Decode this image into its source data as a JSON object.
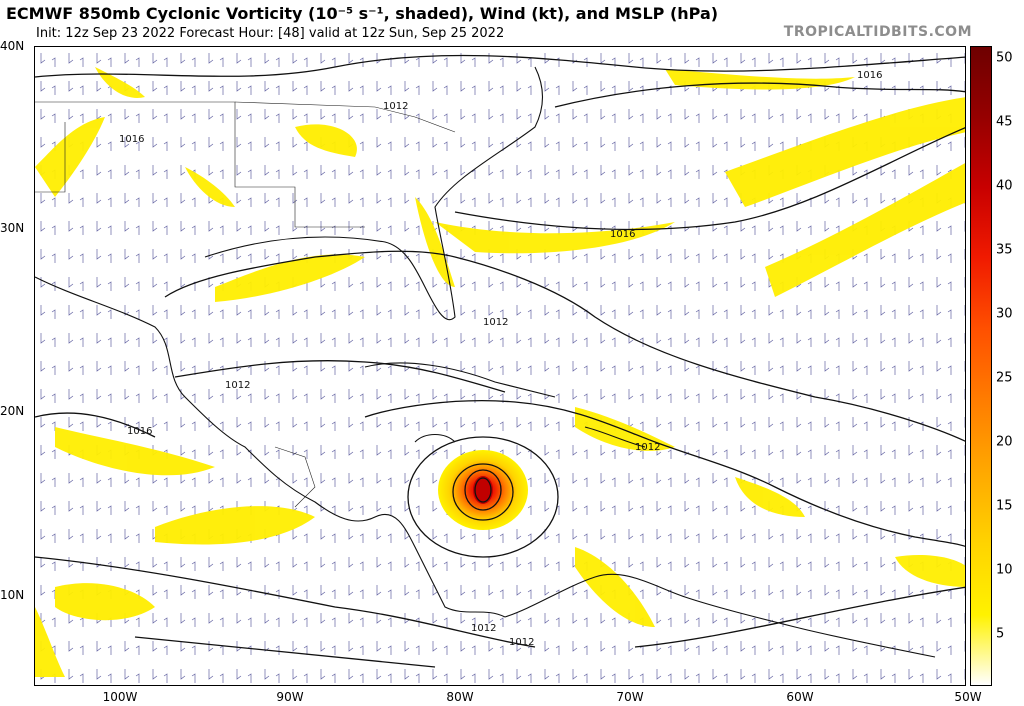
{
  "header": {
    "title": "ECMWF 850mb Cyclonic Vorticity (10⁻⁵ s⁻¹, shaded), Wind (kt), and MSLP (hPa)",
    "subtitle": "Init: 12z Sep 23 2022   Forecast Hour: [48]   valid at 12z Sun, Sep 25 2022",
    "brand": "TROPICALTIDBITS.COM"
  },
  "axes": {
    "lat_labels": [
      "40N",
      "30N",
      "20N",
      "10N"
    ],
    "lon_labels": [
      "100W",
      "90W",
      "80W",
      "70W",
      "60W",
      "50W"
    ]
  },
  "colorbar": {
    "ticks": [
      "50",
      "45",
      "40",
      "35",
      "30",
      "25",
      "20",
      "15",
      "10",
      "5"
    ],
    "colors": [
      "#ffffff",
      "#fff200",
      "#ffd400",
      "#ffaa00",
      "#ff7f00",
      "#ff4f00",
      "#f01a00",
      "#c80000",
      "#960000",
      "#6e0000"
    ]
  },
  "isobars": {
    "labels": [
      "1016",
      "1016",
      "1016",
      "1012",
      "1012",
      "1016",
      "1012",
      "1012",
      "1012",
      "1012"
    ]
  },
  "map": {
    "feature": "tropical cyclone vorticity maximum in central Caribbean",
    "vorticity_max_color": "#d81800"
  }
}
